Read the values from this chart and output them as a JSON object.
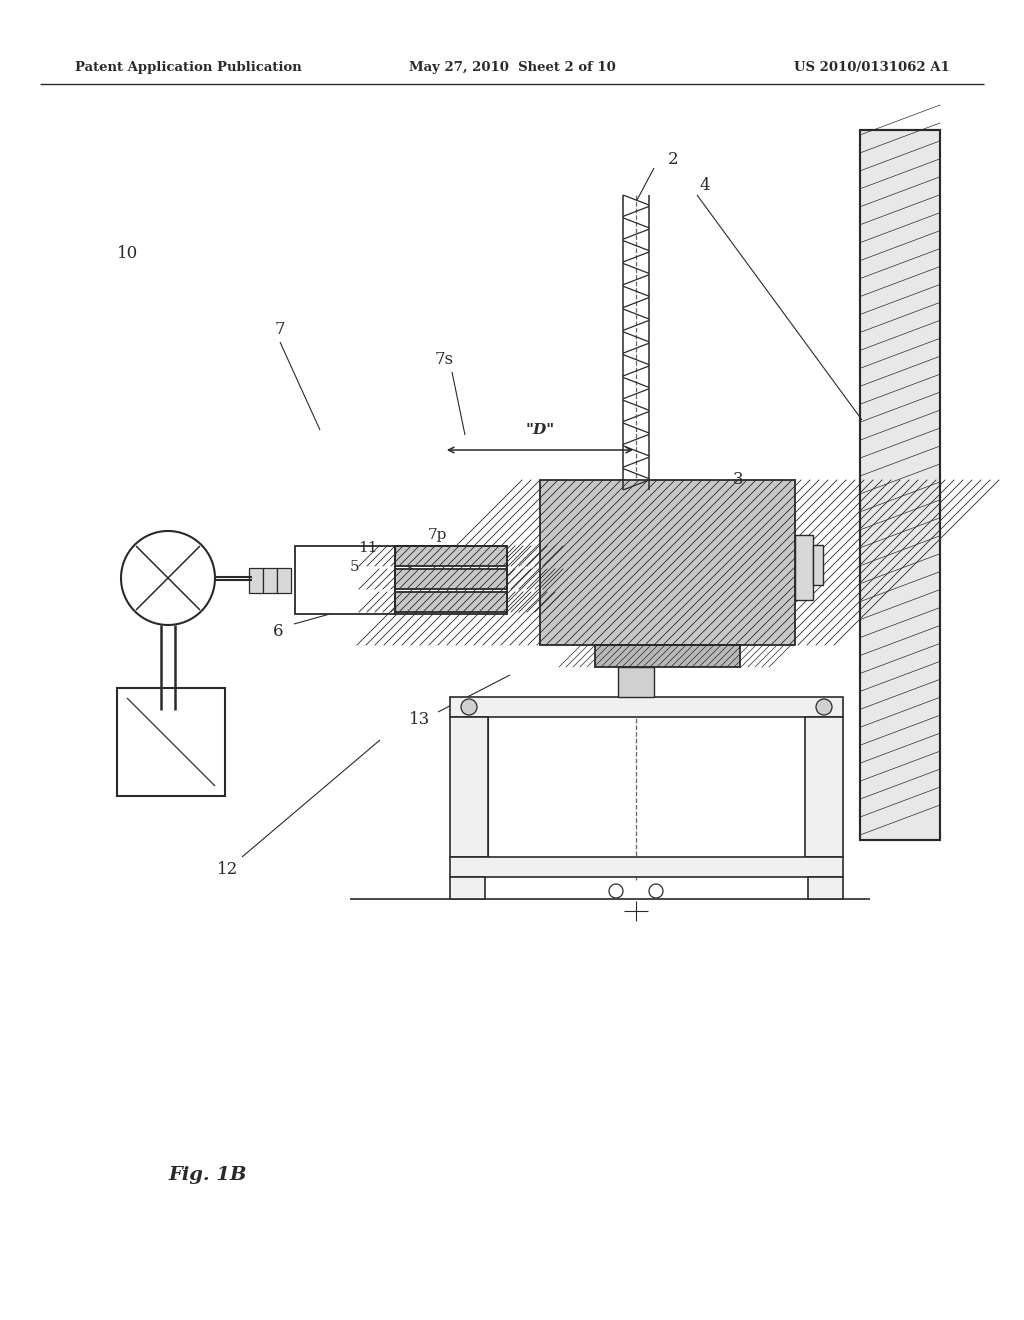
{
  "bg_color": "#ffffff",
  "line_color": "#2a2a2a",
  "header_left": "Patent Application Publication",
  "header_mid": "May 27, 2010  Sheet 2 of 10",
  "header_right": "US 2010/0131062 A1",
  "fig_label": "Fig. 1B"
}
